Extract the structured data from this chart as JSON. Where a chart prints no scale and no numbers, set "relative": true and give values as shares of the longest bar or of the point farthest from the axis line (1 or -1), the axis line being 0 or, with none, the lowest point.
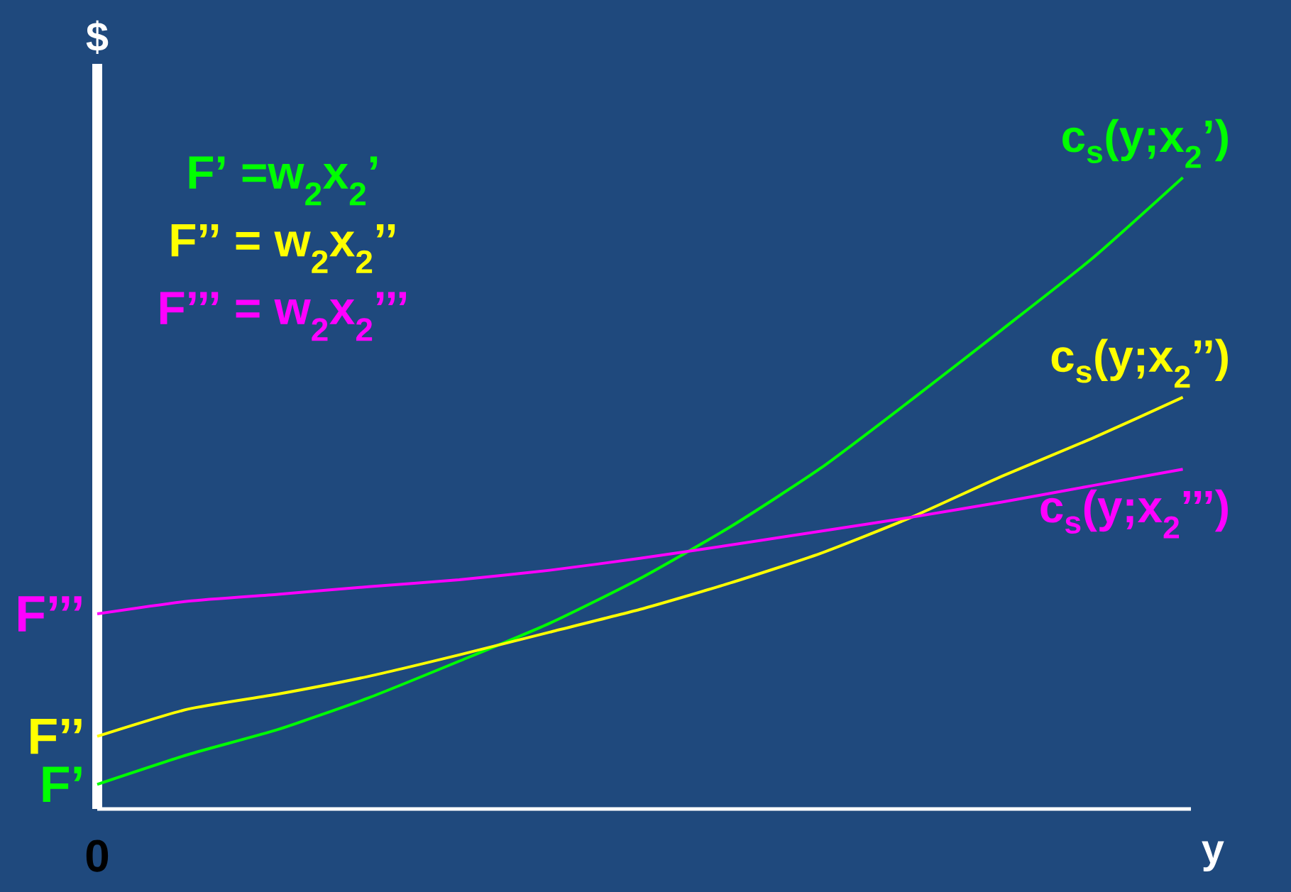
{
  "chart_data": {
    "type": "line",
    "relative": true,
    "xlabel": "y",
    "ylabel": "$",
    "categories": [
      null,
      null,
      null,
      null,
      null,
      null,
      null,
      null,
      null,
      null,
      null,
      null,
      null
    ],
    "series": [
      {
        "name": "c$_{s}$(y;x$_{2}$’)",
        "color": "#00ff00",
        "values": [
          0.039,
          0.086,
          0.126,
          0.176,
          0.234,
          0.294,
          0.365,
          0.447,
          0.54,
          0.648,
          0.759,
          0.872,
          1
        ]
      },
      {
        "name": "c$_{s}$(y;x$_{2}$’’)",
        "color": "#ffff00",
        "values": [
          0.115,
          0.158,
          0.182,
          0.21,
          0.244,
          0.28,
          0.316,
          0.358,
          0.405,
          0.462,
          0.527,
          0.587,
          0.652
        ]
      },
      {
        "name": "c$_{s}$(y;x$_{2}$’’’)",
        "color": "#ff00ff",
        "values": [
          0.309,
          0.329,
          0.34,
          0.352,
          0.363,
          0.378,
          0.397,
          0.418,
          0.44,
          0.462,
          0.486,
          0.512,
          0.538
        ]
      }
    ],
    "annotations": [
      "F’ =w$_{2}$x$_{2}$’",
      "F’’ = w$_{2}$x$_{2}$’’",
      "F’’’ = w$_{2}$x$_{2}$’’’",
      "0",
      "F’",
      "F’’",
      "F’’’"
    ]
  }
}
